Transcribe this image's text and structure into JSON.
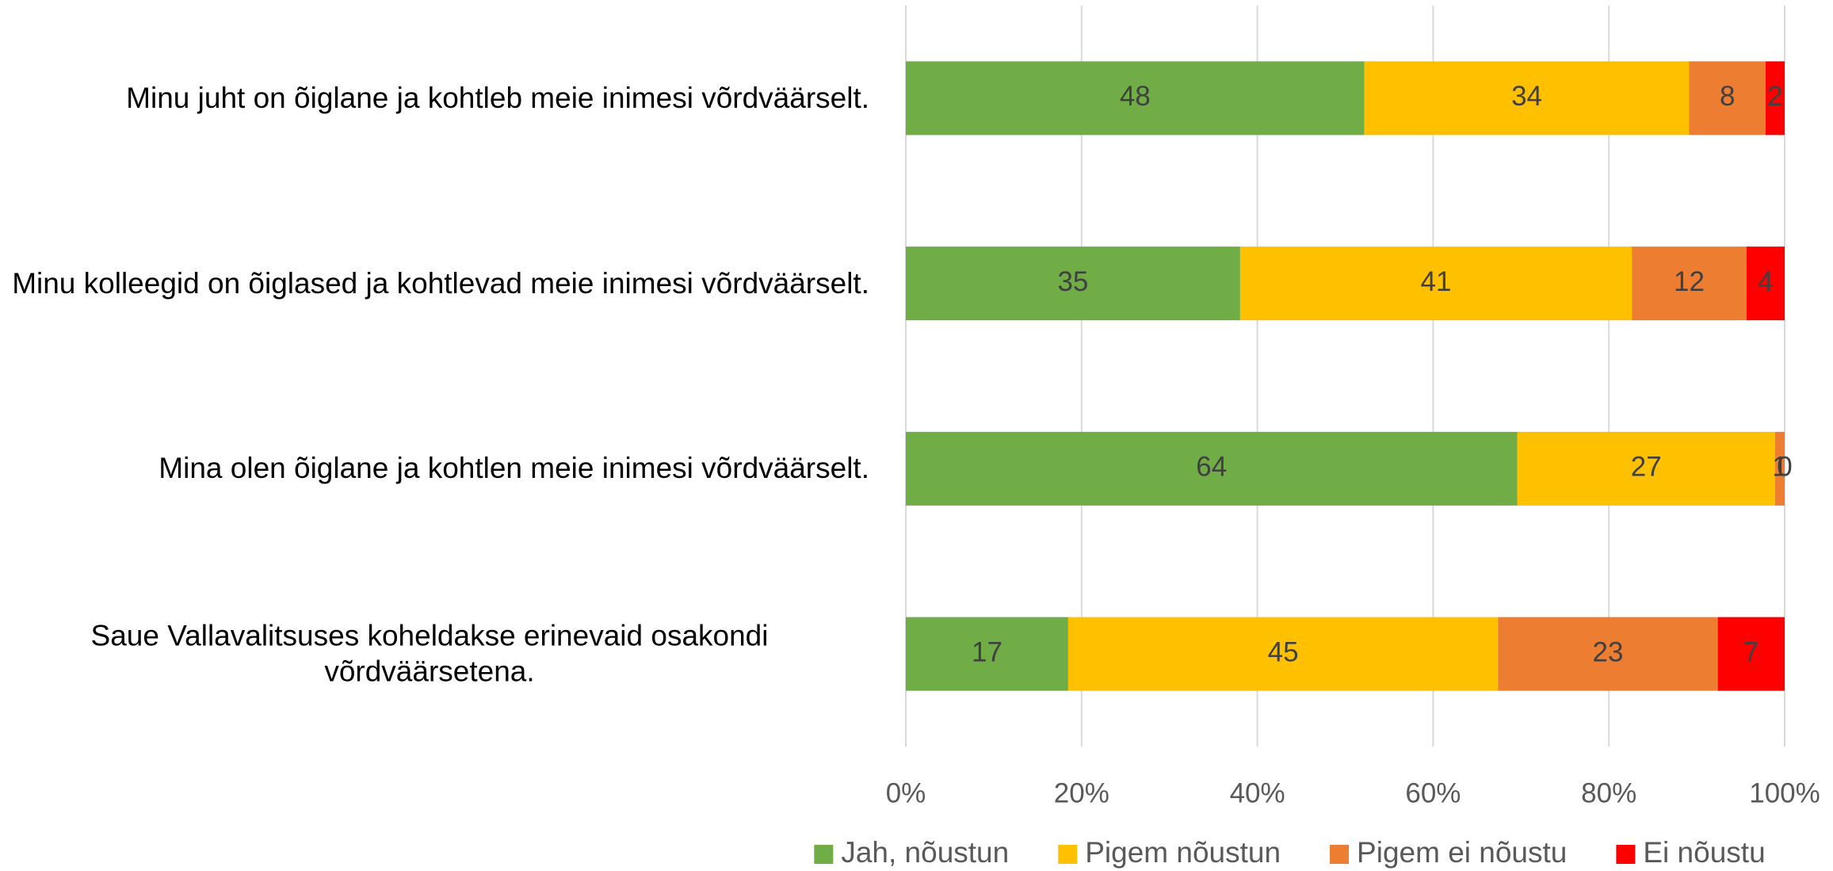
{
  "chart_data": {
    "type": "bar",
    "orientation": "horizontal",
    "stacking": "percent",
    "categories": [
      "Minu juht on õiglane ja kohtleb meie inimesi võrdväärselt.",
      "Minu kolleegid on õiglased ja kohtlevad meie inimesi võrdväärselt.",
      "Mina olen õiglane ja kohtlen meie inimesi võrdväärselt.",
      "Saue Vallavalitsuses koheldakse erinevaid osakondi võrdväärsetena."
    ],
    "series": [
      {
        "name": "Jah, nõustun",
        "color": "#70ad47",
        "values": [
          48,
          35,
          64,
          17
        ]
      },
      {
        "name": "Pigem nõustun",
        "color": "#ffc000",
        "values": [
          34,
          41,
          27,
          45
        ]
      },
      {
        "name": "Pigem ei nõustu",
        "color": "#ed7d31",
        "values": [
          8,
          12,
          1,
          23
        ]
      },
      {
        "name": "Ei nõustu",
        "color": "#ff0000",
        "values": [
          2,
          4,
          0,
          7
        ]
      }
    ],
    "xlim": [
      0,
      100
    ],
    "xticks": [
      {
        "value": 0,
        "label": "0%"
      },
      {
        "value": 20,
        "label": "20%"
      },
      {
        "value": 40,
        "label": "40%"
      },
      {
        "value": 60,
        "label": "60%"
      },
      {
        "value": 80,
        "label": "80%"
      },
      {
        "value": 100,
        "label": "100%"
      }
    ],
    "grid": true,
    "legend": "bottom"
  }
}
